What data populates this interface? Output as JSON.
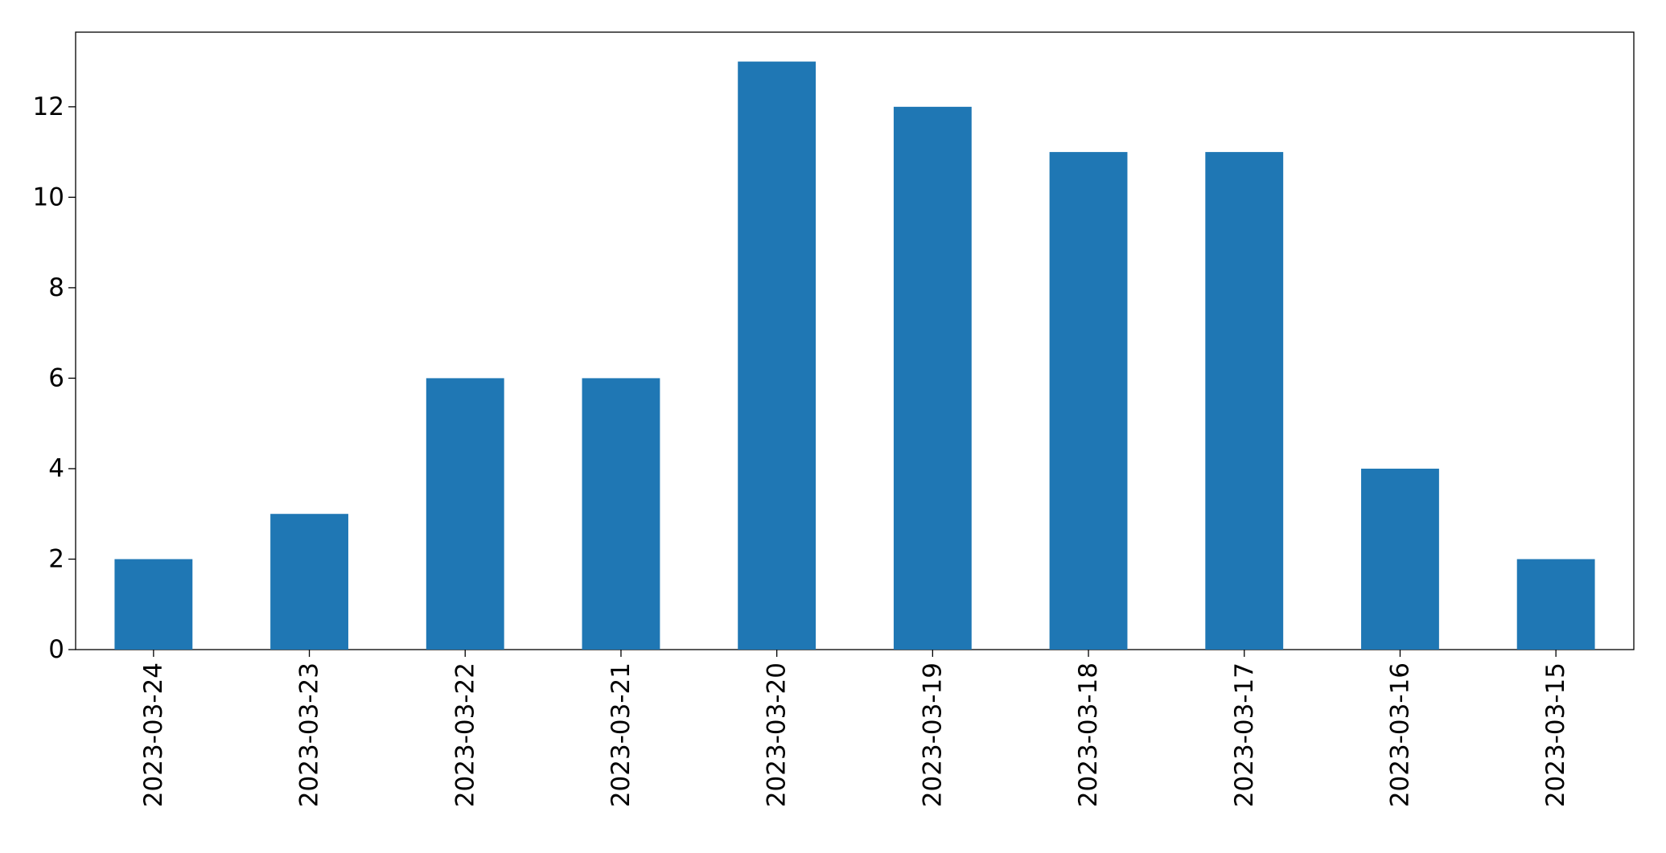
{
  "chart_data": {
    "type": "bar",
    "categories": [
      "2023-03-24",
      "2023-03-23",
      "2023-03-22",
      "2023-03-21",
      "2023-03-20",
      "2023-03-19",
      "2023-03-18",
      "2023-03-17",
      "2023-03-16",
      "2023-03-15"
    ],
    "values": [
      2,
      3,
      6,
      6,
      13,
      12,
      11,
      11,
      4,
      2
    ],
    "color": "#1f77b4",
    "ylim": [
      0,
      13.65
    ],
    "yticks": [
      0,
      2,
      4,
      6,
      8,
      10,
      12
    ],
    "grid": false
  }
}
